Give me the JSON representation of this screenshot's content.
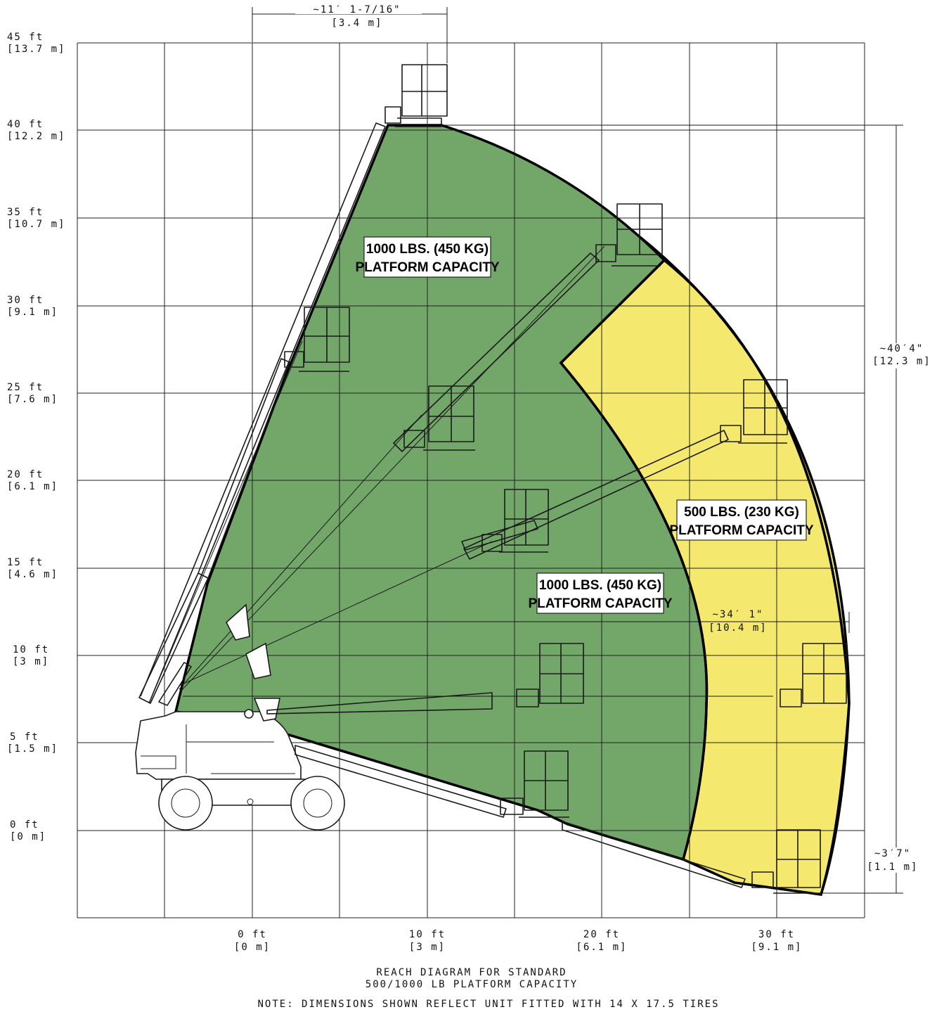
{
  "diagram": {
    "y_labels": [
      {
        "ft": "45 ft",
        "m": "[13.7 m]"
      },
      {
        "ft": "40 ft",
        "m": "[12.2 m]"
      },
      {
        "ft": "35 ft",
        "m": "[10.7 m]"
      },
      {
        "ft": "30 ft",
        "m": "[9.1 m]"
      },
      {
        "ft": "25 ft",
        "m": "[7.6 m]"
      },
      {
        "ft": "20 ft",
        "m": "[6.1 m]"
      },
      {
        "ft": "15 ft",
        "m": "[4.6 m]"
      },
      {
        "ft": "10 ft",
        "m": "[3 m]"
      },
      {
        "ft": "5 ft",
        "m": "[1.5 m]"
      },
      {
        "ft": "0 ft",
        "m": "[0 m]"
      }
    ],
    "x_labels": [
      {
        "ft": "0 ft",
        "m": "[0 m]"
      },
      {
        "ft": "10 ft",
        "m": "[3 m]"
      },
      {
        "ft": "20 ft",
        "m": "[6.1 m]"
      },
      {
        "ft": "30 ft",
        "m": "[9.1 m]"
      }
    ],
    "dimensions": {
      "top_offset": {
        "imperial": "~11′ 1-7/16\"",
        "metric": "[3.4 m]"
      },
      "max_height": {
        "imperial": "~40′4\"",
        "metric": "[12.3 m]"
      },
      "horizontal_reach": {
        "imperial": "~34′ 1\"",
        "metric": "[10.4 m]"
      },
      "below_grade": {
        "imperial": "~3′7\"",
        "metric": "[1.1 m]"
      }
    },
    "zones": [
      {
        "id": "high-capacity",
        "line1": "1000 LBS. (450 KG)",
        "line2": "PLATFORM CAPACITY",
        "color": "#72a769"
      },
      {
        "id": "high-capacity-lower",
        "line1": "1000 LBS. (450 KG)",
        "line2": "PLATFORM CAPACITY",
        "color": "#72a769"
      },
      {
        "id": "low-capacity",
        "line1": "500 LBS. (230 KG)",
        "line2": "PLATFORM CAPACITY",
        "color": "#f4e96e"
      }
    ],
    "caption_line1": "REACH DIAGRAM FOR STANDARD",
    "caption_line2": "500/1000 LB PLATFORM CAPACITY",
    "note": "NOTE: DIMENSIONS SHOWN REFLECT UNIT FITTED WITH 14 X 17.5 TIRES"
  }
}
